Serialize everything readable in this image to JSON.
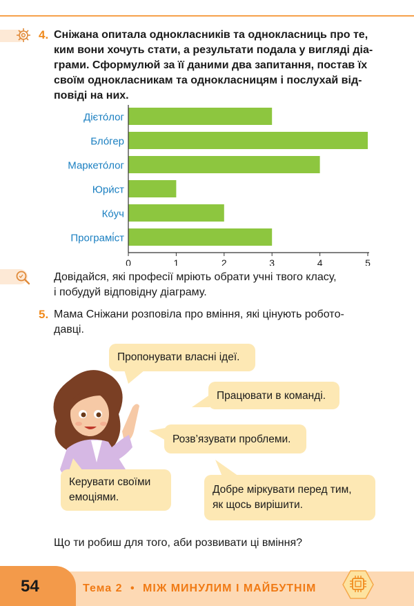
{
  "task4": {
    "number": "4.",
    "lines": [
      "Сніжана опитала однокласників та однокласниць про те,",
      "ким вони хочуть стати, а результати подала у вигляді діа-",
      "грами. Сформулюй за її даними два запитання, постав їх",
      "своїм однокласникам та однокласницям і послухай від-",
      "повіді на них."
    ]
  },
  "chart_data": {
    "type": "bar",
    "orientation": "horizontal",
    "categories": [
      "Дієто́лог",
      "Бло́гер",
      "Маркето́лог",
      "Юри́ст",
      "Ко́уч",
      "Програмі́ст"
    ],
    "values": [
      3,
      5,
      4,
      1,
      2,
      3
    ],
    "xlim": [
      0,
      5
    ],
    "xticks": [
      "0",
      "1",
      "2",
      "3",
      "4",
      "5"
    ],
    "bar_color": "#8dc63f",
    "label_color": "#1a7fc1"
  },
  "explore": {
    "lines": [
      "Довідайся, які професії мріють обрати учні твого класу,",
      "і побудуй відповідну діаграму."
    ]
  },
  "task5": {
    "number": "5.",
    "lines": [
      "Мама Сніжани розповіла про вміння, які цінують роботo-",
      "давці."
    ]
  },
  "bubbles": [
    {
      "lines": [
        "Пропонувати власні ідеї."
      ]
    },
    {
      "lines": [
        "Працювати в команді."
      ]
    },
    {
      "lines": [
        "Розв’язувати проблеми."
      ]
    },
    {
      "lines": [
        "Керувати своїми",
        "емоціями."
      ]
    },
    {
      "lines": [
        "Добре міркувати перед тим,",
        "як щось вирішити."
      ]
    }
  ],
  "question": "Що ти робиш для того, аби розвивати ці вміння?",
  "footer": {
    "page_number": "54",
    "theme": "Тема 2",
    "dot": "•",
    "title": "МІЖ МИНУЛИМ І МАЙБУТНІМ"
  },
  "colors": {
    "accent": "#f08a1c",
    "bubble": "#fde8b4",
    "footer_light": "#fdd9b4",
    "footer_dark": "#f39a4a"
  }
}
